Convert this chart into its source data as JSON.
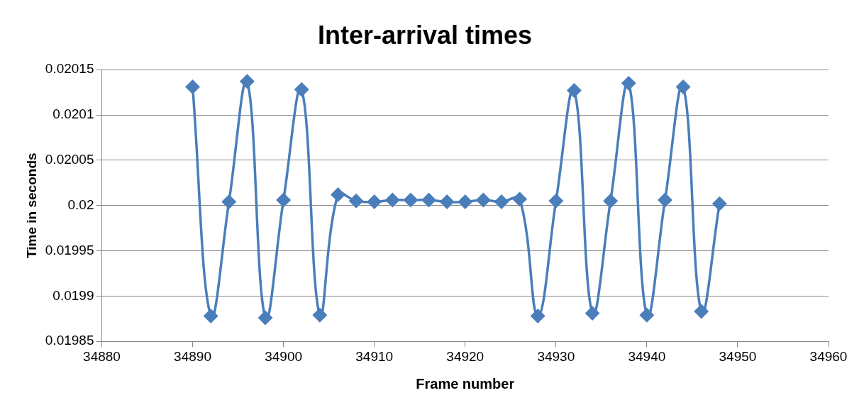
{
  "chart_data": {
    "type": "line",
    "title": "Inter-arrival times",
    "xlabel": "Frame number",
    "ylabel": "Time in seconds",
    "x": [
      34890,
      34892,
      34894,
      34896,
      34898,
      34900,
      34902,
      34904,
      34906,
      34908,
      34910,
      34912,
      34914,
      34916,
      34918,
      34920,
      34922,
      34924,
      34926,
      34928,
      34930,
      34932,
      34934,
      34936,
      34938,
      34940,
      34942,
      34944,
      34946,
      34948
    ],
    "series": [
      {
        "color": "#4a7ebb",
        "values": [
          0.020131,
          0.019878,
          0.020004,
          0.020137,
          0.019876,
          0.020006,
          0.020128,
          0.019879,
          0.020012,
          0.020005,
          0.020004,
          0.020006,
          0.020006,
          0.020006,
          0.020004,
          0.020004,
          0.020006,
          0.020004,
          0.020007,
          0.019878,
          0.020005,
          0.020127,
          0.019881,
          0.020005,
          0.020135,
          0.019879,
          0.020006,
          0.020131,
          0.019883,
          0.020002
        ]
      }
    ],
    "xlim": [
      34880,
      34960
    ],
    "xticks": [
      34880,
      34890,
      34900,
      34910,
      34920,
      34930,
      34940,
      34950,
      34960
    ],
    "ylim": [
      0.01985,
      0.02015
    ],
    "yticks": [
      0.01985,
      0.0199,
      0.01995,
      0.02,
      0.02005,
      0.0201,
      0.02015
    ],
    "grid": "y",
    "legend": false,
    "marker": "diamond",
    "line_style": "solid"
  }
}
